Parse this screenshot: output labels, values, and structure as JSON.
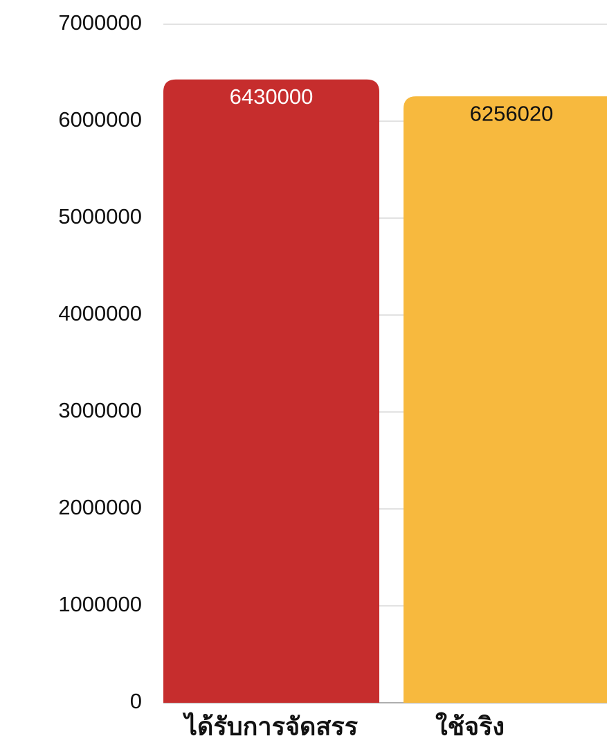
{
  "chart_data": {
    "type": "bar",
    "categories": [
      "ได้รับการจัดสรร",
      "ใช้จริง"
    ],
    "values": [
      6430000,
      6256020
    ],
    "colors": [
      "#c62d2d",
      "#f7b93e"
    ],
    "ylim": [
      0,
      7000000
    ],
    "yticks": [
      0,
      1000000,
      2000000,
      3000000,
      4000000,
      5000000,
      6000000,
      7000000
    ],
    "grid": true
  }
}
